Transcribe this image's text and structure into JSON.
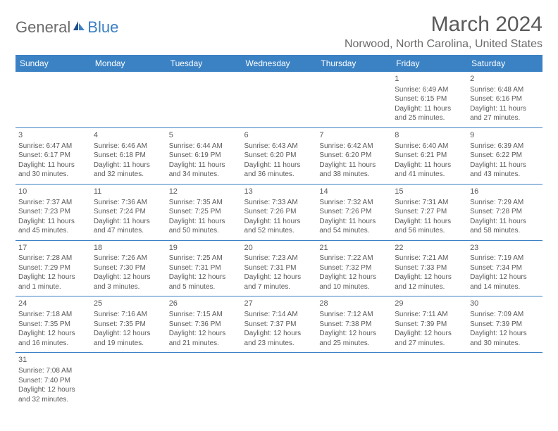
{
  "logo": {
    "text1": "General",
    "text2": "Blue"
  },
  "title": "March 2024",
  "location": "Norwood, North Carolina, United States",
  "header_bg": "#3b82c4",
  "header_fg": "#ffffff",
  "border_color": "#3b82c4",
  "text_color": "#5a5a5a",
  "daynames": [
    "Sunday",
    "Monday",
    "Tuesday",
    "Wednesday",
    "Thursday",
    "Friday",
    "Saturday"
  ],
  "weeks": [
    [
      null,
      null,
      null,
      null,
      null,
      {
        "n": "1",
        "sr": "Sunrise: 6:49 AM",
        "ss": "Sunset: 6:15 PM",
        "dl": "Daylight: 11 hours and 25 minutes."
      },
      {
        "n": "2",
        "sr": "Sunrise: 6:48 AM",
        "ss": "Sunset: 6:16 PM",
        "dl": "Daylight: 11 hours and 27 minutes."
      }
    ],
    [
      {
        "n": "3",
        "sr": "Sunrise: 6:47 AM",
        "ss": "Sunset: 6:17 PM",
        "dl": "Daylight: 11 hours and 30 minutes."
      },
      {
        "n": "4",
        "sr": "Sunrise: 6:46 AM",
        "ss": "Sunset: 6:18 PM",
        "dl": "Daylight: 11 hours and 32 minutes."
      },
      {
        "n": "5",
        "sr": "Sunrise: 6:44 AM",
        "ss": "Sunset: 6:19 PM",
        "dl": "Daylight: 11 hours and 34 minutes."
      },
      {
        "n": "6",
        "sr": "Sunrise: 6:43 AM",
        "ss": "Sunset: 6:20 PM",
        "dl": "Daylight: 11 hours and 36 minutes."
      },
      {
        "n": "7",
        "sr": "Sunrise: 6:42 AM",
        "ss": "Sunset: 6:20 PM",
        "dl": "Daylight: 11 hours and 38 minutes."
      },
      {
        "n": "8",
        "sr": "Sunrise: 6:40 AM",
        "ss": "Sunset: 6:21 PM",
        "dl": "Daylight: 11 hours and 41 minutes."
      },
      {
        "n": "9",
        "sr": "Sunrise: 6:39 AM",
        "ss": "Sunset: 6:22 PM",
        "dl": "Daylight: 11 hours and 43 minutes."
      }
    ],
    [
      {
        "n": "10",
        "sr": "Sunrise: 7:37 AM",
        "ss": "Sunset: 7:23 PM",
        "dl": "Daylight: 11 hours and 45 minutes."
      },
      {
        "n": "11",
        "sr": "Sunrise: 7:36 AM",
        "ss": "Sunset: 7:24 PM",
        "dl": "Daylight: 11 hours and 47 minutes."
      },
      {
        "n": "12",
        "sr": "Sunrise: 7:35 AM",
        "ss": "Sunset: 7:25 PM",
        "dl": "Daylight: 11 hours and 50 minutes."
      },
      {
        "n": "13",
        "sr": "Sunrise: 7:33 AM",
        "ss": "Sunset: 7:26 PM",
        "dl": "Daylight: 11 hours and 52 minutes."
      },
      {
        "n": "14",
        "sr": "Sunrise: 7:32 AM",
        "ss": "Sunset: 7:26 PM",
        "dl": "Daylight: 11 hours and 54 minutes."
      },
      {
        "n": "15",
        "sr": "Sunrise: 7:31 AM",
        "ss": "Sunset: 7:27 PM",
        "dl": "Daylight: 11 hours and 56 minutes."
      },
      {
        "n": "16",
        "sr": "Sunrise: 7:29 AM",
        "ss": "Sunset: 7:28 PM",
        "dl": "Daylight: 11 hours and 58 minutes."
      }
    ],
    [
      {
        "n": "17",
        "sr": "Sunrise: 7:28 AM",
        "ss": "Sunset: 7:29 PM",
        "dl": "Daylight: 12 hours and 1 minute."
      },
      {
        "n": "18",
        "sr": "Sunrise: 7:26 AM",
        "ss": "Sunset: 7:30 PM",
        "dl": "Daylight: 12 hours and 3 minutes."
      },
      {
        "n": "19",
        "sr": "Sunrise: 7:25 AM",
        "ss": "Sunset: 7:31 PM",
        "dl": "Daylight: 12 hours and 5 minutes."
      },
      {
        "n": "20",
        "sr": "Sunrise: 7:23 AM",
        "ss": "Sunset: 7:31 PM",
        "dl": "Daylight: 12 hours and 7 minutes."
      },
      {
        "n": "21",
        "sr": "Sunrise: 7:22 AM",
        "ss": "Sunset: 7:32 PM",
        "dl": "Daylight: 12 hours and 10 minutes."
      },
      {
        "n": "22",
        "sr": "Sunrise: 7:21 AM",
        "ss": "Sunset: 7:33 PM",
        "dl": "Daylight: 12 hours and 12 minutes."
      },
      {
        "n": "23",
        "sr": "Sunrise: 7:19 AM",
        "ss": "Sunset: 7:34 PM",
        "dl": "Daylight: 12 hours and 14 minutes."
      }
    ],
    [
      {
        "n": "24",
        "sr": "Sunrise: 7:18 AM",
        "ss": "Sunset: 7:35 PM",
        "dl": "Daylight: 12 hours and 16 minutes."
      },
      {
        "n": "25",
        "sr": "Sunrise: 7:16 AM",
        "ss": "Sunset: 7:35 PM",
        "dl": "Daylight: 12 hours and 19 minutes."
      },
      {
        "n": "26",
        "sr": "Sunrise: 7:15 AM",
        "ss": "Sunset: 7:36 PM",
        "dl": "Daylight: 12 hours and 21 minutes."
      },
      {
        "n": "27",
        "sr": "Sunrise: 7:14 AM",
        "ss": "Sunset: 7:37 PM",
        "dl": "Daylight: 12 hours and 23 minutes."
      },
      {
        "n": "28",
        "sr": "Sunrise: 7:12 AM",
        "ss": "Sunset: 7:38 PM",
        "dl": "Daylight: 12 hours and 25 minutes."
      },
      {
        "n": "29",
        "sr": "Sunrise: 7:11 AM",
        "ss": "Sunset: 7:39 PM",
        "dl": "Daylight: 12 hours and 27 minutes."
      },
      {
        "n": "30",
        "sr": "Sunrise: 7:09 AM",
        "ss": "Sunset: 7:39 PM",
        "dl": "Daylight: 12 hours and 30 minutes."
      }
    ],
    [
      {
        "n": "31",
        "sr": "Sunrise: 7:08 AM",
        "ss": "Sunset: 7:40 PM",
        "dl": "Daylight: 12 hours and 32 minutes."
      },
      null,
      null,
      null,
      null,
      null,
      null
    ]
  ]
}
